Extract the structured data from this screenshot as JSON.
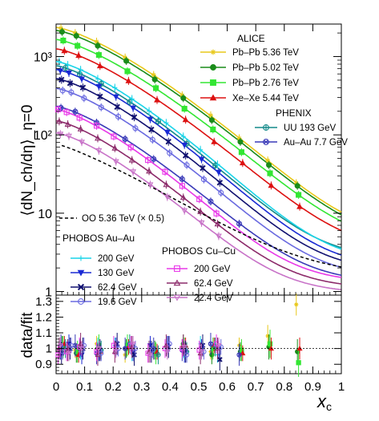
{
  "chart_data": {
    "type": "scatter",
    "xlabel_main": "x",
    "xlabel_sub": "c",
    "ylabel_top": "⟨dN_ch/dη⟩_η=0",
    "ylabel_bottom": "data/fit",
    "xlim": [
      0,
      1
    ],
    "top_ylim": [
      0.9,
      2600
    ],
    "top_yscale": "log",
    "bottom_ylim": [
      0.84,
      1.34
    ],
    "x_ticks": [
      "0",
      "0.1",
      "0.2",
      "0.3",
      "0.4",
      "0.5",
      "0.6",
      "0.7",
      "0.8",
      "0.9",
      "1"
    ],
    "top_y_ticks": [
      {
        "v": 1,
        "label": "1"
      },
      {
        "v": 10,
        "label": "10"
      },
      {
        "v": 100,
        "label": "10²"
      },
      {
        "v": 1000,
        "label": "10³"
      }
    ],
    "bottom_y_ticks": [
      "0.9",
      "1",
      "1.1",
      "1.2",
      "1.3"
    ],
    "legend_groups": {
      "alice": "ALICE",
      "phenix": "PHENIX",
      "phobos_auau": "PHOBOS Au–Au",
      "phobos_cucu": "PHOBOS Cu–Cu"
    },
    "oo_label": "OO 5.36 TeV (× 0.5)",
    "series": [
      {
        "key": "pbpb536",
        "name": "Pb–Pb 5.36 TeV",
        "group": "alice",
        "color": "#e8c81a",
        "marker": "star",
        "a": 2350,
        "k": 6.0,
        "floor": 4.5,
        "xmax": 0.86
      },
      {
        "key": "pbpb502",
        "name": "Pb–Pb 5.02 TeV",
        "group": "alice",
        "color": "#1a8c1a",
        "marker": "circle",
        "a": 2150,
        "k": 6.0,
        "floor": 4.2,
        "xmax": 0.86
      },
      {
        "key": "pbpb276",
        "name": "Pb–Pb 2.76 TeV",
        "group": "alice",
        "color": "#33e633",
        "marker": "square",
        "a": 1650,
        "k": 6.0,
        "floor": 3.8,
        "xmax": 0.86
      },
      {
        "key": "xexe544",
        "name": "Xe–Xe 5.44 TeV",
        "group": "alice",
        "color": "#dd1111",
        "marker": "triangle",
        "a": 1250,
        "k": 6.1,
        "floor": 3.2,
        "xmax": 0.86
      },
      {
        "key": "uu193",
        "name": "UU  193 GeV",
        "group": "phenix",
        "color": "#148a8a",
        "marker": "circle-cross",
        "a": 760,
        "k": 6.6,
        "floor": 2.6,
        "xmax": 0.56
      },
      {
        "key": "auau77",
        "name": "Au–Au 7.7 GeV",
        "group": "phenix",
        "color": "#3a3ab8",
        "marker": "circle-x",
        "a": 230,
        "k": 6.6,
        "floor": 1.3,
        "xmax": 0.67
      },
      {
        "key": "auau200",
        "name": "200 GeV",
        "group": "phobos_auau",
        "color": "#1ad4e8",
        "marker": "plus",
        "a": 860,
        "k": 6.6,
        "floor": 2.3,
        "xmax": 0.6
      },
      {
        "key": "auau130",
        "name": "130 GeV",
        "group": "phobos_auau",
        "color": "#1a2ad4",
        "marker": "triangle-down",
        "a": 680,
        "k": 6.6,
        "floor": 2.0,
        "xmax": 0.6
      },
      {
        "key": "auau624",
        "name": "62.4 GeV",
        "group": "phobos_auau",
        "color": "#101070",
        "marker": "cross",
        "a": 520,
        "k": 6.6,
        "floor": 1.8,
        "xmax": 0.6
      },
      {
        "key": "auau196",
        "name": "19.6 GeV",
        "group": "phobos_auau",
        "color": "#6a6ae0",
        "marker": "open-circle",
        "a": 390,
        "k": 6.6,
        "floor": 1.5,
        "xmax": 0.6
      },
      {
        "key": "cucu200",
        "name": "200 GeV",
        "group": "phobos_cucu",
        "color": "#e838e8",
        "marker": "open-square",
        "a": 210,
        "k": 6.9,
        "floor": 1.3,
        "xmax": 0.6
      },
      {
        "key": "cucu624",
        "name": "62.4 GeV",
        "group": "phobos_cucu",
        "color": "#8c2a6a",
        "marker": "open-triangle",
        "a": 150,
        "k": 6.9,
        "floor": 1.1,
        "xmax": 0.6
      },
      {
        "key": "cucu224",
        "name": "22.4 GeV",
        "group": "phobos_cucu",
        "color": "#c873c8",
        "marker": "open-triangle-down",
        "a": 105,
        "k": 6.9,
        "floor": 0.95,
        "xmax": 0.6
      }
    ],
    "oo_curve": {
      "a": 75,
      "k": 4.9,
      "floor": 1.5,
      "color": "#000000"
    }
  }
}
